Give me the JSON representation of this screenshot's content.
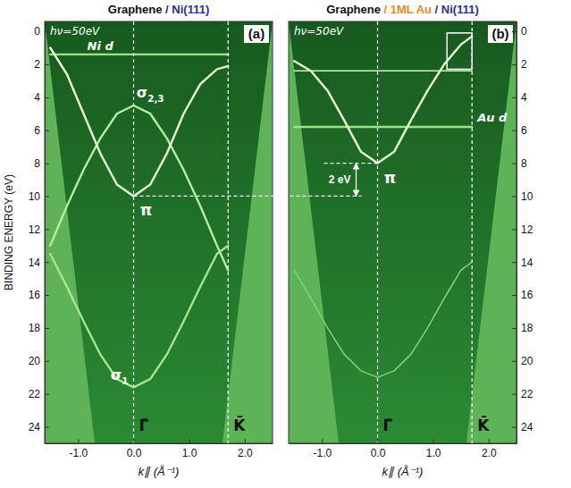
{
  "chart_data": [
    {
      "type": "line",
      "title": "Graphene / Ni(111)",
      "panel": "(a)",
      "annotation": "hν=50eV",
      "xlabel": "k∥ (Å⁻¹)",
      "ylabel": "BINDING ENERGY (eV)",
      "x": [
        -1.5,
        -1.2,
        -0.9,
        -0.6,
        -0.3,
        0,
        0.3,
        0.6,
        0.9,
        1.2,
        1.5,
        1.7
      ],
      "series": [
        {
          "name": "Ni d",
          "color": "#9ee38a",
          "values": [
            1.4,
            1.4,
            1.4,
            1.4,
            1.4,
            1.4,
            1.4,
            1.4,
            1.4,
            1.4,
            1.4,
            1.4
          ]
        },
        {
          "name": "σ2,3",
          "color": "#b6eea0",
          "values": [
            13.0,
            10.6,
            8.4,
            6.5,
            5.0,
            4.5,
            5.0,
            6.5,
            8.4,
            10.6,
            13.0,
            14.5
          ]
        },
        {
          "name": "π",
          "color": "#eaffd8",
          "values": [
            1.0,
            2.6,
            5.0,
            7.4,
            9.3,
            10.0,
            9.3,
            7.4,
            5.0,
            3.2,
            2.3,
            2.1
          ]
        },
        {
          "name": "σ1",
          "color": "#a6e690",
          "values": [
            13.5,
            15.5,
            17.6,
            19.6,
            21.1,
            21.6,
            21.1,
            19.6,
            17.6,
            15.5,
            13.5,
            13.0
          ]
        }
      ],
      "xlim": [
        -1.6,
        2.5
      ],
      "ylim": [
        -0.6,
        25
      ],
      "xticks": [
        {
          "value": -1,
          "label": "-1.0"
        },
        {
          "value": 0,
          "label": "0.0"
        },
        {
          "value": 1,
          "label": "1.0"
        },
        {
          "value": 2,
          "label": "2.0"
        }
      ],
      "yticks": [
        0,
        2,
        4,
        6,
        8,
        10,
        12,
        14,
        16,
        18,
        20,
        22,
        24
      ],
      "symmetry_points": {
        "labels": [
          "Γ̄",
          "K̄"
        ],
        "values": [
          0,
          1.7
        ]
      },
      "grid": false
    },
    {
      "type": "line",
      "title": "Graphene / 1ML Au / Ni(111)",
      "panel": "(b)",
      "annotation": "hν=50eV",
      "xlabel": "k∥ (Å⁻¹)",
      "x": [
        -1.5,
        -1.2,
        -0.9,
        -0.6,
        -0.3,
        0,
        0.3,
        0.6,
        0.9,
        1.2,
        1.5,
        1.7
      ],
      "series": [
        {
          "name": "Au d",
          "color": "#9ee38a",
          "values": [
            5.8,
            5.8,
            5.8,
            5.8,
            5.8,
            5.8,
            5.8,
            5.8,
            5.8,
            5.8,
            5.8,
            5.8
          ]
        },
        {
          "color": "#c8f5b0",
          "values": [
            2.4,
            2.4,
            2.4,
            2.4,
            2.4,
            2.4,
            2.4,
            2.4,
            2.4,
            2.4,
            2.4,
            2.4
          ]
        },
        {
          "name": "π",
          "color": "#eaffd8",
          "values": [
            1.8,
            2.4,
            3.6,
            5.4,
            7.3,
            8.0,
            7.3,
            5.4,
            3.6,
            2.0,
            0.8,
            0.3
          ]
        },
        {
          "color": "#7fcf70",
          "values": [
            14.5,
            16.2,
            18.0,
            19.6,
            20.6,
            21.0,
            20.6,
            19.6,
            18.0,
            16.2,
            14.5,
            14.0
          ]
        }
      ],
      "xlim": [
        -1.6,
        2.5
      ],
      "ylim": [
        -0.6,
        25
      ],
      "xticks": [
        {
          "value": -1,
          "label": "-1.0"
        },
        {
          "value": 0,
          "label": "0.0"
        },
        {
          "value": 1,
          "label": "1.0"
        },
        {
          "value": 2,
          "label": "2.0"
        }
      ],
      "yticks": [
        0,
        2,
        4,
        6,
        8,
        10,
        12,
        14,
        16,
        18,
        20,
        22,
        24
      ],
      "symmetry_points": {
        "labels": [
          "Γ̄",
          "K̄"
        ],
        "values": [
          0,
          1.7
        ]
      },
      "shift": {
        "label": "2 eV",
        "values": [
          10,
          8
        ]
      },
      "box": {
        "x": [
          1.25,
          1.7
        ],
        "y": [
          0.1,
          2.3
        ]
      },
      "grid": false
    }
  ]
}
